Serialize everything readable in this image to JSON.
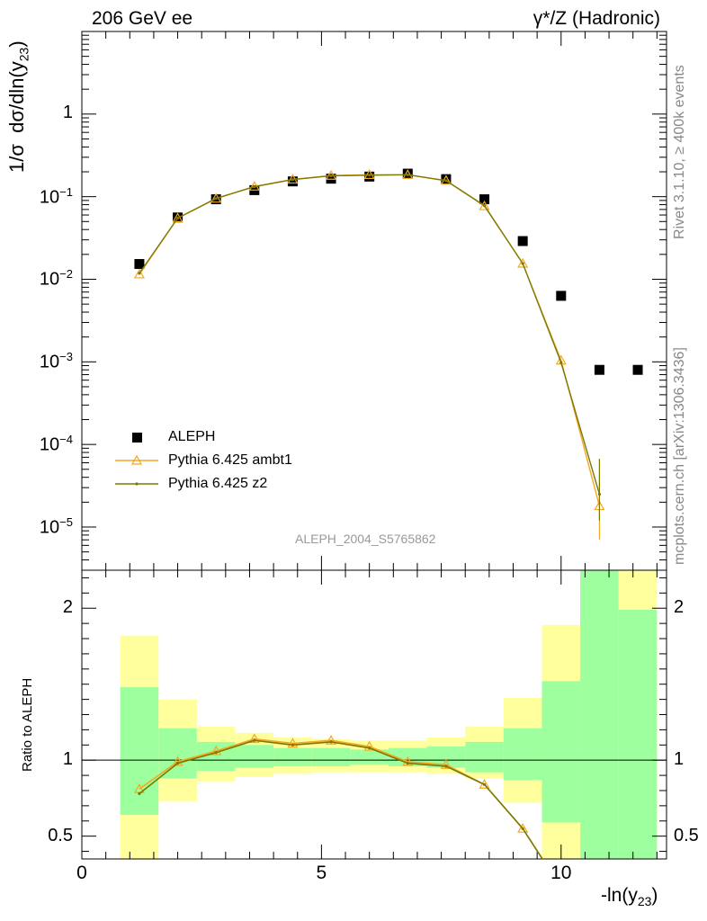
{
  "header": {
    "left": "206 GeV ee",
    "right": "γ*/Z (Hadronic)"
  },
  "side_text": {
    "top": "Rivet 3.1.10, ≥ 400k events",
    "bottom": "mcplots.cern.ch [arXiv:1306.3436]"
  },
  "watermark": "ALEPH_2004_S5765862",
  "chart_data": [
    {
      "type": "scatter",
      "panel": "main",
      "ylabel": "1/σ  dσ/dln(y23)",
      "yscale": "log",
      "ylim": [
        3e-06,
        10
      ],
      "xlim": [
        0,
        12.2
      ],
      "yticks": [
        {
          "value": 1e-05,
          "mant": "10",
          "exp": "−5"
        },
        {
          "value": 0.0001,
          "mant": "10",
          "exp": "−4"
        },
        {
          "value": 0.001,
          "mant": "10",
          "exp": "−3"
        },
        {
          "value": 0.01,
          "mant": "10",
          "exp": "−2"
        },
        {
          "value": 0.1,
          "mant": "10",
          "exp": "−1"
        },
        {
          "value": 1,
          "mant": "1",
          "exp": ""
        }
      ],
      "legend": {
        "position": "bottom-left",
        "entries": [
          "ALEPH",
          "Pythia 6.425 ambt1",
          "Pythia 6.425 z2"
        ]
      },
      "series": [
        {
          "name": "ALEPH",
          "color": "#000000",
          "marker": "square",
          "x": [
            1.2,
            2.0,
            2.8,
            3.6,
            4.4,
            5.2,
            6.0,
            6.8,
            7.6,
            8.4,
            9.2,
            10.0,
            10.8,
            11.6
          ],
          "y": [
            0.0153,
            0.056,
            0.093,
            0.12,
            0.153,
            0.165,
            0.175,
            0.19,
            0.163,
            0.093,
            0.029,
            0.0063,
            0.0008,
            0.0008
          ]
        },
        {
          "name": "Pythia 6.425 ambt1",
          "color": "#f5a623",
          "marker": "triangle",
          "x": [
            1.2,
            2.0,
            2.8,
            3.6,
            4.4,
            5.2,
            6.0,
            6.8,
            7.6,
            8.4,
            9.2,
            10.0,
            10.8
          ],
          "y": [
            0.0115,
            0.055,
            0.095,
            0.133,
            0.162,
            0.18,
            0.184,
            0.184,
            0.157,
            0.077,
            0.0155,
            0.00104,
            1.8e-05
          ],
          "err_low": [
            0,
            0,
            0,
            0,
            0,
            0,
            0,
            0,
            0,
            0,
            0,
            0,
            1.1e-05
          ],
          "err_high": [
            0,
            0,
            0,
            0,
            0,
            0,
            0,
            0,
            0,
            0,
            0,
            0,
            2.6e-05
          ]
        },
        {
          "name": "Pythia 6.425 z2",
          "color": "#7a7a00",
          "marker": "dot",
          "x": [
            1.2,
            2.0,
            2.8,
            3.6,
            4.4,
            5.2,
            6.0,
            6.8,
            7.6,
            8.4,
            9.2,
            10.0,
            10.8
          ],
          "y": [
            0.0118,
            0.055,
            0.095,
            0.132,
            0.161,
            0.179,
            0.182,
            0.184,
            0.156,
            0.078,
            0.0155,
            0.00098,
            2.5e-05
          ],
          "err_low": [
            0,
            0,
            0,
            0,
            0,
            0,
            0,
            0,
            0,
            0,
            0,
            0,
            1.3e-05
          ],
          "err_high": [
            0,
            0,
            0,
            0,
            0,
            0,
            0,
            0,
            0,
            0,
            0,
            0,
            4.2e-05
          ]
        }
      ]
    },
    {
      "type": "line",
      "panel": "ratio",
      "ylabel": "Ratio to ALEPH",
      "xlabel": "-ln(y23)",
      "ylim": [
        0.35,
        2.25
      ],
      "xlim": [
        0,
        12.2
      ],
      "xticks": [
        0,
        5,
        10
      ],
      "yticks": [
        0.5,
        1,
        2
      ],
      "bands": {
        "x_edges": [
          0.8,
          1.6,
          2.4,
          3.2,
          4.0,
          4.8,
          5.6,
          6.4,
          7.2,
          8.0,
          8.8,
          9.6,
          10.4,
          11.2,
          12.0
        ],
        "yellow_low": [
          0.0,
          0.73,
          0.86,
          0.89,
          0.91,
          0.92,
          0.92,
          0.92,
          0.91,
          0.88,
          0.72,
          0.0,
          0.0,
          0.0
        ],
        "yellow_high": [
          1.82,
          1.4,
          1.22,
          1.18,
          1.15,
          1.14,
          1.13,
          1.13,
          1.15,
          1.22,
          1.41,
          1.89,
          2.3,
          2.3
        ],
        "green_low": [
          0.64,
          0.88,
          0.93,
          0.95,
          0.96,
          0.96,
          0.97,
          0.96,
          0.95,
          0.92,
          0.87,
          0.59,
          0.0,
          0.0
        ],
        "green_high": [
          1.48,
          1.21,
          1.12,
          1.1,
          1.08,
          1.08,
          1.07,
          1.08,
          1.09,
          1.12,
          1.21,
          1.52,
          2.3,
          1.99
        ]
      },
      "series": [
        {
          "name": "Pythia 6.425 ambt1",
          "color": "#f5a623",
          "x": [
            1.2,
            2.0,
            2.8,
            3.6,
            4.4,
            5.2,
            6.0,
            6.8,
            7.6,
            8.4,
            9.2,
            10.0
          ],
          "y": [
            0.81,
            0.99,
            1.06,
            1.14,
            1.11,
            1.13,
            1.09,
            0.99,
            0.97,
            0.84,
            0.55,
            0.16
          ]
        },
        {
          "name": "Pythia 6.425 z2",
          "color": "#7a7a00",
          "x": [
            1.2,
            2.0,
            2.8,
            3.6,
            4.4,
            5.2,
            6.0,
            6.8,
            7.6,
            8.4,
            9.2,
            10.0
          ],
          "y": [
            0.78,
            0.98,
            1.05,
            1.13,
            1.1,
            1.12,
            1.08,
            0.98,
            0.96,
            0.84,
            0.55,
            0.16
          ]
        }
      ]
    }
  ]
}
